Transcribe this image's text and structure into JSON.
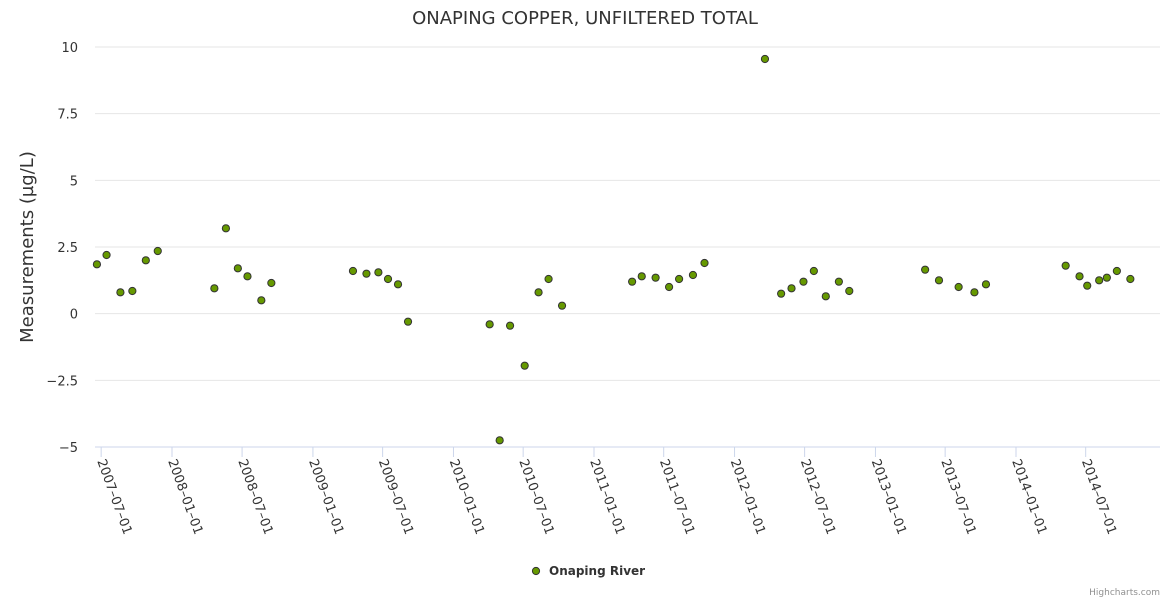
{
  "chart_data": {
    "type": "scatter",
    "title": "ONAPING COPPER, UNFILTERED TOTAL",
    "xlabel": "",
    "ylabel": "Measurements (µg/L)",
    "xlim": [
      "2007-06-15",
      "2015-01-10"
    ],
    "ylim": [
      -5,
      10
    ],
    "yticks": [
      10,
      7.5,
      5,
      2.5,
      0,
      -2.5,
      -5
    ],
    "ytick_labels": [
      "10",
      "7.5",
      "5",
      "2.5",
      "0",
      "−2.5",
      "−5"
    ],
    "xticks": [
      "2007-07-01",
      "2008-01-01",
      "2008-07-01",
      "2009-01-01",
      "2009-07-01",
      "2010-01-01",
      "2010-07-01",
      "2011-01-01",
      "2011-07-01",
      "2012-01-01",
      "2012-07-01",
      "2013-01-01",
      "2013-07-01",
      "2014-01-01",
      "2014-07-01"
    ],
    "xtick_labels": [
      "2007–07–01",
      "2008–01–01",
      "2008–07–01",
      "2009–01–01",
      "2009–07–01",
      "2010–01–01",
      "2010–07–01",
      "2011–01–01",
      "2011–07–01",
      "2012–01–01",
      "2012–07–01",
      "2013–01–01",
      "2013–07–01",
      "2014–01–01",
      "2014–07–01"
    ],
    "grid": true,
    "legend_position": "bottom-center",
    "series": [
      {
        "name": "Onaping River",
        "color": "#669900",
        "points": [
          {
            "x": "2007-06-20",
            "y": 1.85
          },
          {
            "x": "2007-07-15",
            "y": 2.2
          },
          {
            "x": "2007-08-20",
            "y": 0.8
          },
          {
            "x": "2007-09-20",
            "y": 0.85
          },
          {
            "x": "2007-10-25",
            "y": 2.0
          },
          {
            "x": "2007-11-25",
            "y": 2.35
          },
          {
            "x": "2008-04-20",
            "y": 0.95
          },
          {
            "x": "2008-05-20",
            "y": 3.2
          },
          {
            "x": "2008-06-20",
            "y": 1.7
          },
          {
            "x": "2008-07-15",
            "y": 1.4
          },
          {
            "x": "2008-08-20",
            "y": 0.5
          },
          {
            "x": "2008-09-15",
            "y": 1.15
          },
          {
            "x": "2009-04-15",
            "y": 1.6
          },
          {
            "x": "2009-05-20",
            "y": 1.5
          },
          {
            "x": "2009-06-20",
            "y": 1.55
          },
          {
            "x": "2009-07-15",
            "y": 1.3
          },
          {
            "x": "2009-08-10",
            "y": 1.1
          },
          {
            "x": "2009-09-05",
            "y": -0.3
          },
          {
            "x": "2010-04-05",
            "y": -0.4
          },
          {
            "x": "2010-05-01",
            "y": -4.75
          },
          {
            "x": "2010-05-28",
            "y": -0.45
          },
          {
            "x": "2010-07-05",
            "y": -1.95
          },
          {
            "x": "2010-08-10",
            "y": 0.8
          },
          {
            "x": "2010-09-05",
            "y": 1.3
          },
          {
            "x": "2010-10-10",
            "y": 0.3
          },
          {
            "x": "2011-04-10",
            "y": 1.2
          },
          {
            "x": "2011-05-05",
            "y": 1.4
          },
          {
            "x": "2011-06-10",
            "y": 1.35
          },
          {
            "x": "2011-07-15",
            "y": 1.0
          },
          {
            "x": "2011-08-10",
            "y": 1.3
          },
          {
            "x": "2011-09-15",
            "y": 1.45
          },
          {
            "x": "2011-10-15",
            "y": 1.9
          },
          {
            "x": "2012-03-20",
            "y": 9.55
          },
          {
            "x": "2012-05-01",
            "y": 0.75
          },
          {
            "x": "2012-05-28",
            "y": 0.95
          },
          {
            "x": "2012-06-28",
            "y": 1.2
          },
          {
            "x": "2012-07-25",
            "y": 1.6
          },
          {
            "x": "2012-08-25",
            "y": 0.65
          },
          {
            "x": "2012-09-28",
            "y": 1.2
          },
          {
            "x": "2012-10-25",
            "y": 0.85
          },
          {
            "x": "2013-05-10",
            "y": 1.65
          },
          {
            "x": "2013-06-15",
            "y": 1.25
          },
          {
            "x": "2013-08-05",
            "y": 1.0
          },
          {
            "x": "2013-09-15",
            "y": 0.8
          },
          {
            "x": "2013-10-15",
            "y": 1.1
          },
          {
            "x": "2014-05-10",
            "y": 1.8
          },
          {
            "x": "2014-06-15",
            "y": 1.4
          },
          {
            "x": "2014-07-05",
            "y": 1.05
          },
          {
            "x": "2014-08-05",
            "y": 1.25
          },
          {
            "x": "2014-08-25",
            "y": 1.35
          },
          {
            "x": "2014-09-20",
            "y": 1.6
          },
          {
            "x": "2014-10-25",
            "y": 1.3
          }
        ]
      }
    ]
  },
  "credits": "Highcharts.com"
}
